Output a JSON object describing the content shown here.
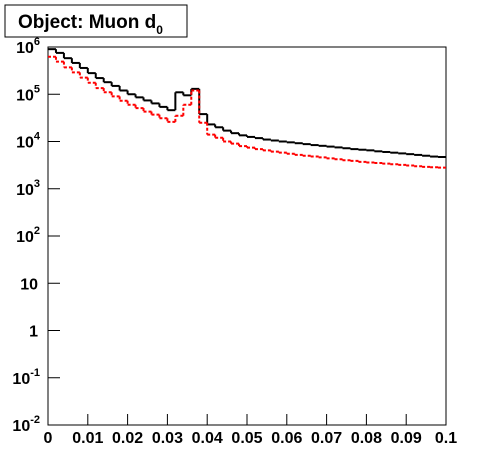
{
  "chart_data": {
    "type": "histogram",
    "title": "Object: Muon d",
    "title_subscript": "0",
    "bins": [
      0,
      0.002,
      0.004,
      0.006,
      0.008,
      0.01,
      0.012,
      0.014,
      0.016,
      0.018,
      0.02,
      0.022,
      0.024,
      0.026,
      0.028,
      0.03,
      0.032,
      0.034,
      0.036,
      0.038,
      0.04,
      0.042,
      0.044,
      0.046,
      0.048,
      0.05,
      0.052,
      0.054,
      0.056,
      0.058,
      0.06,
      0.062,
      0.064,
      0.066,
      0.068,
      0.07,
      0.072,
      0.074,
      0.076,
      0.078,
      0.08,
      0.082,
      0.084,
      0.086,
      0.088,
      0.09,
      0.092,
      0.094,
      0.096,
      0.098,
      0.1
    ],
    "series": [
      {
        "color": "#000000",
        "line": "solid",
        "values": [
          900000,
          750000,
          580000,
          460000,
          360000,
          280000,
          220000,
          180000,
          150000,
          120000,
          100000,
          86000,
          74000,
          64000,
          54000,
          46000,
          110000,
          95000,
          130000,
          38000,
          23000,
          20000,
          17000,
          15000,
          13500,
          12500,
          11800,
          11000,
          10500,
          10000,
          9600,
          9200,
          8800,
          8400,
          8100,
          7800,
          7500,
          7200,
          6900,
          6700,
          6500,
          6200,
          6000,
          5800,
          5600,
          5400,
          5200,
          5000,
          4800,
          4700
        ]
      },
      {
        "color": "#ff0000",
        "line": "dashed",
        "values": [
          620000,
          490000,
          370000,
          290000,
          225000,
          175000,
          135000,
          110000,
          90000,
          73000,
          60000,
          51000,
          43000,
          37000,
          31000,
          26000,
          35000,
          60000,
          120000,
          25000,
          14000,
          12000,
          10000,
          9000,
          8000,
          7400,
          6900,
          6500,
          6100,
          5800,
          5500,
          5200,
          5000,
          4800,
          4600,
          4400,
          4200,
          4000,
          3900,
          3700,
          3600,
          3500,
          3400,
          3300,
          3200,
          3100,
          3000,
          2900,
          2850,
          2800
        ]
      }
    ],
    "xlim": [
      0,
      0.1
    ],
    "xticks": [
      0,
      0.01,
      0.02,
      0.03,
      0.04,
      0.05,
      0.06,
      0.07,
      0.08,
      0.09,
      0.1
    ],
    "ylim": [
      0.01,
      1000000
    ],
    "log_y": true,
    "yticks": [
      {
        "value": 0.01,
        "label": "10",
        "exponent": "-2"
      },
      {
        "value": 0.1,
        "label": "10",
        "exponent": "-1"
      },
      1,
      10,
      {
        "value": 100,
        "label": "10",
        "exponent": "2"
      },
      {
        "value": 1000,
        "label": "10",
        "exponent": "3"
      },
      {
        "value": 10000,
        "label": "10",
        "exponent": "4"
      },
      {
        "value": 100000,
        "label": "10",
        "exponent": "5"
      },
      {
        "value": 1000000,
        "label": "10",
        "exponent": "6"
      }
    ]
  }
}
